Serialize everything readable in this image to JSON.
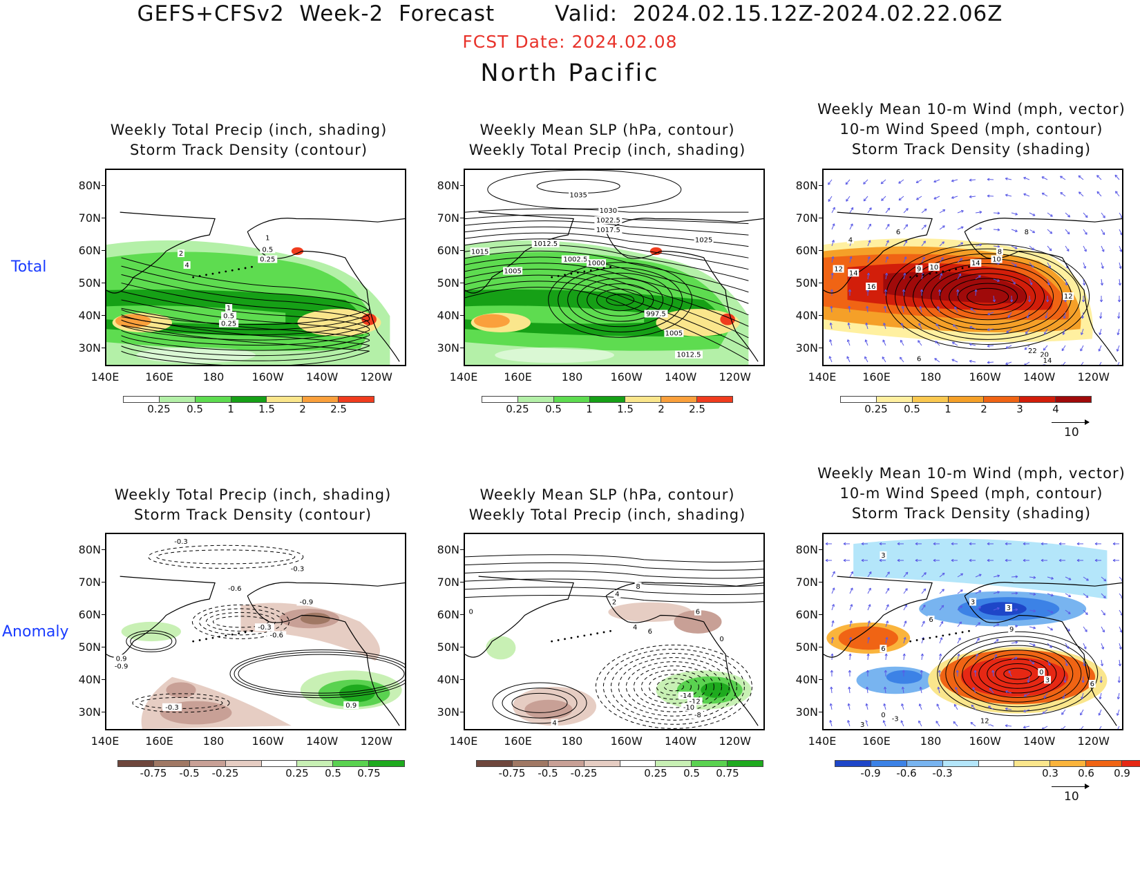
{
  "header": {
    "title": "GEFS+CFSv2  Week-2  Forecast        Valid:  2024.02.15.12Z-2024.02.22.06Z",
    "fcst_date": "FCST Date: 2024.02.08",
    "region": "North Pacific"
  },
  "row_labels": {
    "total": "Total",
    "anomaly": "Anomaly"
  },
  "axes": {
    "lat_labels": [
      "80N",
      "70N",
      "60N",
      "50N",
      "40N",
      "30N"
    ],
    "lon_labels": [
      "140E",
      "160E",
      "180",
      "160W",
      "140W",
      "120W"
    ]
  },
  "panels": {
    "total_precip": {
      "title1": "Weekly Total Precip (inch, shading)",
      "title2": "Storm Track Density (contour)",
      "contour_labels": [
        "2",
        "4",
        "1",
        "0.5",
        "0.25",
        "1",
        "0.5",
        "0.25"
      ],
      "colorbar": {
        "ticks": [
          "0.25",
          "0.5",
          "1",
          "1.5",
          "2",
          "2.5"
        ],
        "colors": [
          "#ffffff",
          "#b4f0a8",
          "#5edc50",
          "#16a016",
          "#fae68c",
          "#faa03c",
          "#f03c1e"
        ]
      }
    },
    "total_slp": {
      "title1": "Weekly Mean SLP (hPa, contour)",
      "title2": "Weekly Total Precip (inch, shading)",
      "contour_labels": [
        "1035",
        "1030",
        "1022.5",
        "1017.5",
        "1012.5",
        "1025",
        "1015",
        "1005",
        "1002.5",
        "1000",
        "997.5",
        "1005",
        "1012.5"
      ],
      "colorbar": {
        "ticks": [
          "0.25",
          "0.5",
          "1",
          "1.5",
          "2",
          "2.5"
        ],
        "colors": [
          "#ffffff",
          "#b4f0a8",
          "#5edc50",
          "#16a016",
          "#fae68c",
          "#faa03c",
          "#f03c1e"
        ]
      }
    },
    "total_wind": {
      "title1": "Weekly Mean 10-m Wind (mph, vector)",
      "title2": "10-m Wind Speed (mph, contour)",
      "title3": "Storm Track Density (shading)",
      "contour_labels": [
        "4",
        "6",
        "8",
        "12",
        "14",
        "16",
        "9",
        "10",
        "14",
        "10",
        "8",
        "12",
        "22",
        "20",
        "14",
        "6"
      ],
      "colorbar": {
        "ticks": [
          "0.25",
          "0.5",
          "1",
          "2",
          "3",
          "4"
        ],
        "colors": [
          "#ffffff",
          "#fff0a0",
          "#fac850",
          "#f5a028",
          "#f06414",
          "#d21e0a",
          "#a00a0a"
        ]
      },
      "vector_ref": "10"
    },
    "anom_precip": {
      "title1": "Weekly Total Precip (inch, shading)",
      "title2": "Storm Track Density (contour)",
      "contour_labels": [
        "-0.3",
        "-0.3",
        "-0.6",
        "-0.9",
        "-0.3",
        "-0.6",
        "0.9",
        "-0.9",
        "-0.3",
        "0.9"
      ],
      "colorbar": {
        "ticks": [
          "-0.75",
          "-0.5",
          "-0.25",
          "0.25",
          "0.5",
          "0.75"
        ],
        "colors": [
          "#6e463c",
          "#a07864",
          "#c8a096",
          "#e6cdc3",
          "#ffffff",
          "#c8f0b4",
          "#5ad250",
          "#1eaa1e"
        ]
      }
    },
    "anom_slp": {
      "title1": "Weekly Mean SLP (hPa, contour)",
      "title2": "Weekly Total Precip (inch, shading)",
      "contour_labels": [
        "8",
        "4",
        "2",
        "0",
        "6",
        "4",
        "6",
        "0",
        "-14",
        "-12",
        "-10",
        "-8",
        "4"
      ],
      "colorbar": {
        "ticks": [
          "-0.75",
          "-0.5",
          "-0.25",
          "0.25",
          "0.5",
          "0.75"
        ],
        "colors": [
          "#6e463c",
          "#a07864",
          "#c8a096",
          "#e6cdc3",
          "#ffffff",
          "#c8f0b4",
          "#5ad250",
          "#1eaa1e"
        ]
      }
    },
    "anom_wind": {
      "title1": "Weekly Mean 10-m Wind (mph, vector)",
      "title2": "10-m Wind Speed (mph, contour)",
      "title3": "Storm Track Density (shading)",
      "contour_labels": [
        "3",
        "3",
        "3",
        "6",
        "9",
        "6",
        "0",
        "3",
        "6",
        "0",
        "-3",
        "12",
        "3"
      ],
      "colorbar": {
        "ticks": [
          "-0.9",
          "-0.6",
          "-0.3",
          "0.3",
          "0.6",
          "0.9"
        ],
        "colors": [
          "#1e46c8",
          "#3c82e6",
          "#78b4f0",
          "#b4e6fa",
          "#ffffff",
          "#fae68c",
          "#fab43c",
          "#f06414",
          "#e62814"
        ]
      },
      "vector_ref": "10"
    }
  }
}
